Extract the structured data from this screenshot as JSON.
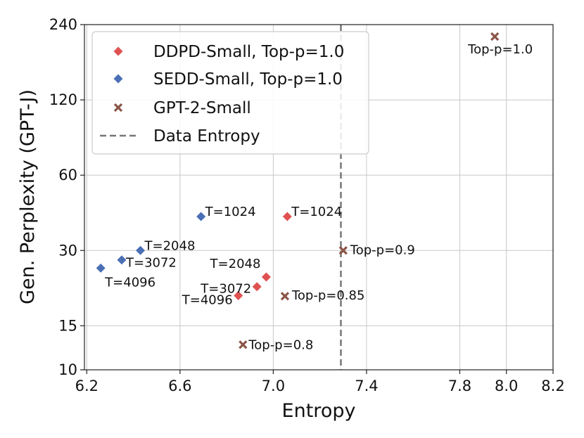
{
  "chart_data": {
    "type": "scatter",
    "xlabel": "Entropy",
    "ylabel": "Gen. Perplexity (GPT-J)",
    "xlim": [
      6.19,
      8.2
    ],
    "ylim": [
      10,
      240
    ],
    "yscale": "log",
    "xticks": [
      "6.2",
      "6.6",
      "7.0",
      "7.4",
      "7.8",
      "8.0",
      "8.2"
    ],
    "xtick_values": [
      6.2,
      6.6,
      7.0,
      7.4,
      7.8,
      8.0,
      8.2
    ],
    "yticks": [
      "10",
      "15",
      "30",
      "60",
      "120",
      "240"
    ],
    "ytick_values": [
      10,
      15,
      30,
      60,
      120,
      240
    ],
    "grid": true,
    "legend_position": "top-left",
    "colors": {
      "ddpd": "#e05252",
      "sedd": "#4a6fb5",
      "gpt2": "#8b5547",
      "entropy": "#777777"
    },
    "series": [
      {
        "name": "DDPD-Small, Top-p=1.0",
        "marker": "diamond",
        "points": [
          {
            "x": 7.06,
            "y": 41,
            "label": "T=1024"
          },
          {
            "x": 6.97,
            "y": 23.5,
            "label": "T=2048"
          },
          {
            "x": 6.93,
            "y": 21.5,
            "label": "T=3072"
          },
          {
            "x": 6.85,
            "y": 19.8,
            "label": "T=4096"
          }
        ]
      },
      {
        "name": "SEDD-Small, Top-p=1.0",
        "marker": "diamond",
        "points": [
          {
            "x": 6.69,
            "y": 41,
            "label": "T=1024"
          },
          {
            "x": 6.43,
            "y": 30,
            "label": "T=2048"
          },
          {
            "x": 6.35,
            "y": 27.5,
            "label": "T=3072"
          },
          {
            "x": 6.26,
            "y": 25.5,
            "label": "T=4096"
          }
        ]
      },
      {
        "name": "GPT-2-Small",
        "marker": "x",
        "points": [
          {
            "x": 7.95,
            "y": 215,
            "label": "Top-p=1.0"
          },
          {
            "x": 7.3,
            "y": 30,
            "label": "Top-p=0.9"
          },
          {
            "x": 7.05,
            "y": 19.7,
            "label": "Top-p=0.85"
          },
          {
            "x": 6.87,
            "y": 12.6,
            "label": "Top-p=0.8"
          }
        ]
      }
    ],
    "reference_line": {
      "name": "Data Entropy",
      "x": 7.29,
      "style": "dashed"
    }
  }
}
